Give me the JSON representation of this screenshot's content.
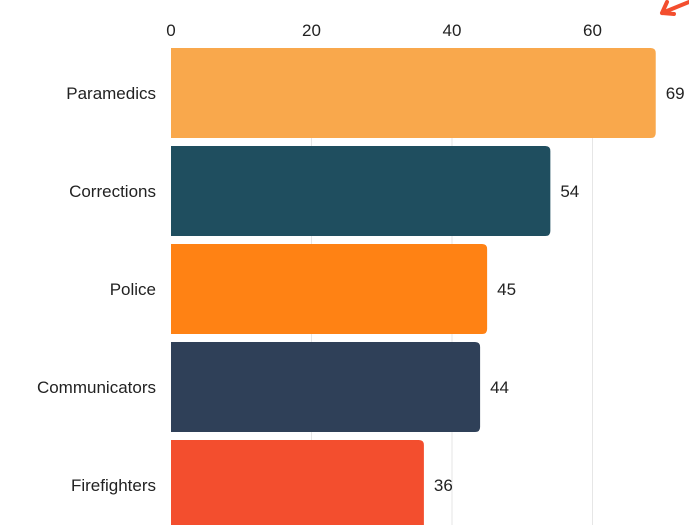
{
  "chart_data": {
    "type": "bar",
    "orientation": "horizontal",
    "categories": [
      "Paramedics",
      "Corrections",
      "Police",
      "Communicators",
      "Firefighters"
    ],
    "values": [
      69,
      54,
      45,
      44,
      36
    ],
    "colors": [
      "#F9A84C",
      "#1F4E5F",
      "#FF8214",
      "#2F4058",
      "#F34E2E"
    ],
    "xlim": [
      0,
      70
    ],
    "xticks": [
      0,
      20,
      40,
      60
    ],
    "x_axis_position": "top",
    "grid": true,
    "title": "",
    "xlabel": "",
    "ylabel": ""
  },
  "decor": {
    "arrow_color": "#F34E2E"
  }
}
